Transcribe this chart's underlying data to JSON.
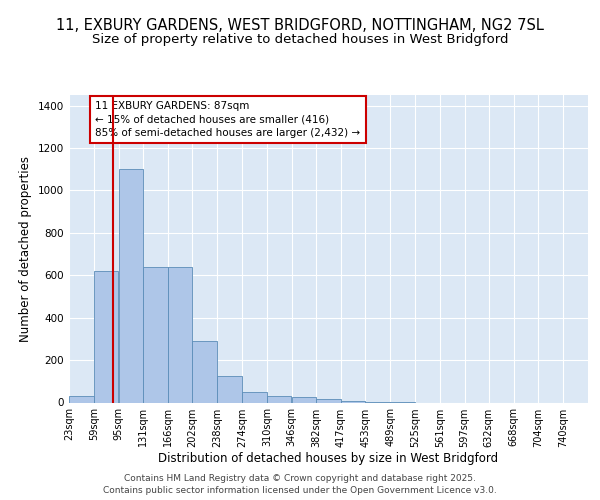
{
  "title_line1": "11, EXBURY GARDENS, WEST BRIDGFORD, NOTTINGHAM, NG2 7SL",
  "title_line2": "Size of property relative to detached houses in West Bridgford",
  "xlabel": "Distribution of detached houses by size in West Bridgford",
  "ylabel": "Number of detached properties",
  "bin_labels": [
    "23sqm",
    "59sqm",
    "95sqm",
    "131sqm",
    "166sqm",
    "202sqm",
    "238sqm",
    "274sqm",
    "310sqm",
    "346sqm",
    "382sqm",
    "417sqm",
    "453sqm",
    "489sqm",
    "525sqm",
    "561sqm",
    "597sqm",
    "632sqm",
    "668sqm",
    "704sqm",
    "740sqm"
  ],
  "bin_edges": [
    23,
    59,
    95,
    131,
    166,
    202,
    238,
    274,
    310,
    346,
    382,
    417,
    453,
    489,
    525,
    561,
    597,
    632,
    668,
    704,
    740
  ],
  "bar_heights": [
    30,
    620,
    1100,
    640,
    640,
    290,
    125,
    50,
    30,
    25,
    15,
    5,
    2,
    1,
    0,
    0,
    0,
    0,
    0,
    0
  ],
  "bar_color": "#aec6e8",
  "bar_edge_color": "#5b8db8",
  "vline_x": 87,
  "vline_color": "#cc0000",
  "annotation_text": "11 EXBURY GARDENS: 87sqm\n← 15% of detached houses are smaller (416)\n85% of semi-detached houses are larger (2,432) →",
  "annotation_box_color": "#cc0000",
  "ylim": [
    0,
    1450
  ],
  "yticks": [
    0,
    200,
    400,
    600,
    800,
    1000,
    1200,
    1400
  ],
  "background_color": "#dce8f5",
  "grid_color": "#ffffff",
  "footer_text": "Contains HM Land Registry data © Crown copyright and database right 2025.\nContains public sector information licensed under the Open Government Licence v3.0.",
  "title_fontsize": 10.5,
  "subtitle_fontsize": 9.5,
  "axis_label_fontsize": 8.5,
  "tick_fontsize": 7.5,
  "annotation_fontsize": 7.5,
  "footer_fontsize": 6.5
}
